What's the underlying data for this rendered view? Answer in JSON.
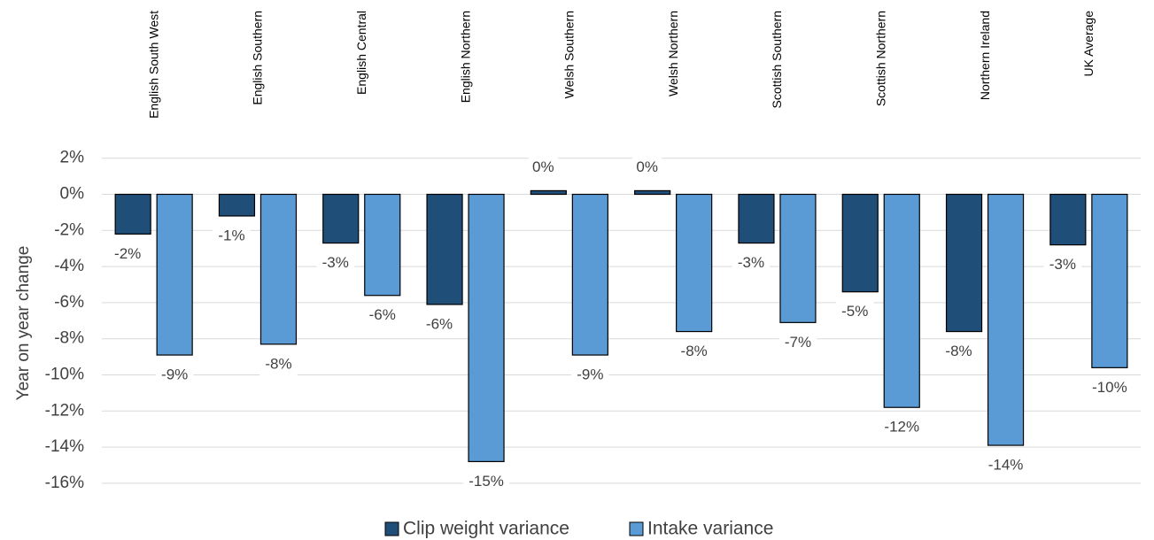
{
  "chart_data": {
    "type": "bar",
    "categories": [
      "English South West",
      "English Southern",
      "English Central",
      "English Northern",
      "Welsh Southern",
      "Welsh Northern",
      "Scottish Southern",
      "Scottish Northern",
      "Northern Ireland",
      "UK Average"
    ],
    "series": [
      {
        "name": "Clip weight variance",
        "color": "#1f4e79",
        "values": [
          -2.2,
          -1.2,
          -2.7,
          -6.1,
          0.2,
          0.2,
          -2.7,
          -5.4,
          -7.6,
          -2.8
        ],
        "labels": [
          "-2%",
          "-1%",
          "-3%",
          "-6%",
          "0%",
          "0%",
          "-3%",
          "-5%",
          "-8%",
          "-3%"
        ]
      },
      {
        "name": "Intake variance",
        "color": "#5b9bd5",
        "values": [
          -8.9,
          -8.3,
          -5.6,
          -14.8,
          -8.9,
          -7.6,
          -7.1,
          -11.8,
          -13.9,
          -9.6
        ],
        "labels": [
          "-9%",
          "-8%",
          "-6%",
          "-15%",
          "-9%",
          "-8%",
          "-7%",
          "-12%",
          "-14%",
          "-10%"
        ]
      }
    ],
    "yticks": [
      "2%",
      "0%",
      "-2%",
      "-4%",
      "-6%",
      "-8%",
      "-10%",
      "-12%",
      "-14%",
      "-16%"
    ],
    "ylim": [
      -16,
      2
    ],
    "ylabel": "Year on year change",
    "xlabel": "",
    "grid": true,
    "legend_position": "bottom"
  }
}
